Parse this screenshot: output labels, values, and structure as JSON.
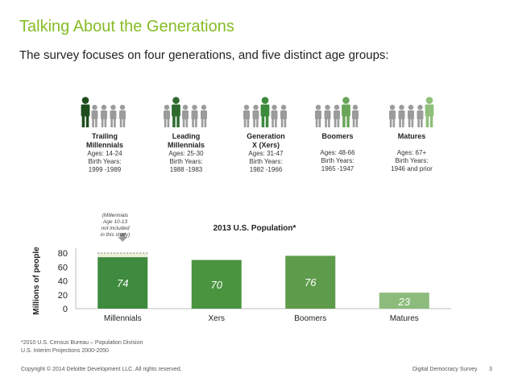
{
  "slide": {
    "title": "Talking About the Generations",
    "subtitle": "The survey focuses on four generations, and five distinct age groups:"
  },
  "generations": [
    {
      "name_line1": "Trailing",
      "name_line2": "Millennials",
      "ages": "Ages: 14-24",
      "birth_label": "Birth Years:",
      "birth_years": "1999 -1989",
      "highlight_index": 0
    },
    {
      "name_line1": "Leading",
      "name_line2": "Millennials",
      "ages": "Ages: 25-30",
      "birth_label": "Birth Years:",
      "birth_years": "1988 -1983",
      "highlight_index": 1
    },
    {
      "name_line1": "Generation",
      "name_line2": "X (Xers)",
      "ages": "Ages: 31-47",
      "birth_label": "Birth Years:",
      "birth_years": "1982 -1966",
      "highlight_index": 2
    },
    {
      "name_line1": "Boomers",
      "name_line2": "",
      "ages": "Ages: 48-66",
      "birth_label": "Birth Years:",
      "birth_years": "1965 -1947",
      "highlight_index": 3
    },
    {
      "name_line1": "Matures",
      "name_line2": "",
      "ages": "Ages: 67+",
      "birth_label": "Birth Years:",
      "birth_years": "1946 and prior",
      "highlight_index": 4
    }
  ],
  "icon_colors": {
    "highlight": [
      "#1e4d1e",
      "#2f6b2f",
      "#3c8a3c",
      "#6aa55a",
      "#8fbf7a"
    ],
    "inactive": "#9b9b9b"
  },
  "note": {
    "line1": "(Millennials",
    "line2": "Age 10-13",
    "line3": "not included",
    "line4": "in this study)"
  },
  "chart_data": {
    "type": "bar",
    "title": "2013 U.S. Population*",
    "ylabel": "Millions of people",
    "xlabel": "",
    "ylim": [
      0,
      80
    ],
    "yticks": [
      0,
      20,
      40,
      60,
      80
    ],
    "categories": [
      "Millennials",
      "Xers",
      "Boomers",
      "Matures"
    ],
    "values": [
      74,
      70,
      76,
      23
    ],
    "colors": [
      "#3e8a3e",
      "#4a9440",
      "#5e9c4c",
      "#8dbb7c"
    ],
    "extension": {
      "category": "Millennials",
      "value_to": 80,
      "color": "#eaf1d8"
    },
    "grid": false,
    "legend": "none"
  },
  "source": {
    "line1": "*2010 U.S. Census Bureau – Population Division",
    "line2": "U.S. Interim Projections 2000-2050"
  },
  "footer": {
    "copyright": "Copyright © 2014 Deloitte Development LLC. All rights reserved.",
    "survey": "Digital Democracy Survey",
    "page": "3"
  }
}
